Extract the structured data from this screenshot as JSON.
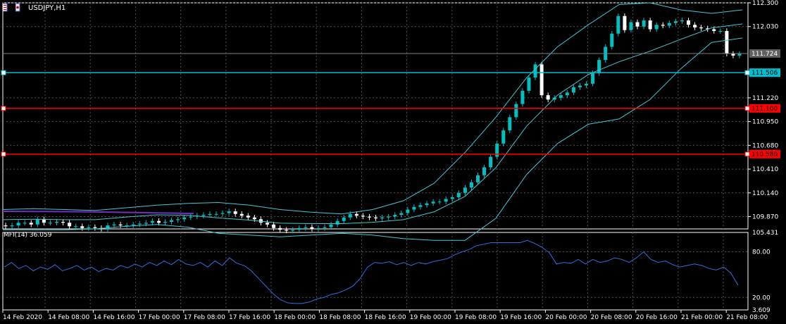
{
  "window": {
    "symbol_title": "USDJPY,H1"
  },
  "indicator": {
    "label": "MFI(14) 36.059",
    "name": "MFI(14)",
    "value": 36.059
  },
  "colors": {
    "background": "#000000",
    "grid": "#505050",
    "bull": "#00c0c0",
    "bear": "#ffffff",
    "bands": "#40c8d8",
    "mfi": "#2e6fe0",
    "ma": "#7030c0",
    "hline_cyan": "#00c0d0",
    "hline_red": "#ff0000",
    "ask_line": "#808080"
  },
  "price_axis": {
    "ticks": [
      "112.300",
      "112.030",
      "111.220",
      "110.950",
      "110.680",
      "110.410",
      "110.140",
      "109.870"
    ],
    "min": 109.73,
    "max": 112.3
  },
  "mfi_axis": {
    "ticks": [
      "105.431",
      "80.00",
      "20.00",
      "3.609"
    ],
    "min": 3.609,
    "max": 105.431
  },
  "price_labels": [
    {
      "text": "111.724",
      "price": 111.724,
      "kind": "current"
    },
    {
      "text": "111.506",
      "price": 111.506,
      "kind": "cyan"
    },
    {
      "text": "111.100",
      "price": 111.1,
      "kind": "red"
    },
    {
      "text": "110.580",
      "price": 110.58,
      "kind": "red"
    }
  ],
  "time_axis": {
    "labels": [
      "14 Feb 2020",
      "14 Feb 08:00",
      "14 Feb 16:00",
      "17 Feb 00:00",
      "17 Feb 08:00",
      "17 Feb 16:00",
      "18 Feb 00:00",
      "18 Feb 08:00",
      "18 Feb 16:00",
      "19 Feb 00:00",
      "19 Feb 08:00",
      "19 Feb 16:00",
      "20 Feb 00:00",
      "20 Feb 08:00",
      "20 Feb 16:00",
      "21 Feb 00:00",
      "21 Feb 08:00"
    ]
  },
  "chart_data": {
    "type": "candlestick",
    "symbol": "USDJPY",
    "timeframe": "H1",
    "closes": [
      109.76,
      109.77,
      109.8,
      109.8,
      109.78,
      109.84,
      109.8,
      109.8,
      109.81,
      109.8,
      109.76,
      109.76,
      109.74,
      109.75,
      109.74,
      109.73,
      109.77,
      109.78,
      109.77,
      109.77,
      109.78,
      109.79,
      109.8,
      109.82,
      109.8,
      109.81,
      109.83,
      109.84,
      109.86,
      109.87,
      109.88,
      109.89,
      109.9,
      109.9,
      109.91,
      109.93,
      109.9,
      109.88,
      109.86,
      109.84,
      109.8,
      109.78,
      109.74,
      109.72,
      109.71,
      109.72,
      109.74,
      109.75,
      109.73,
      109.74,
      109.75,
      109.78,
      109.82,
      109.86,
      109.9,
      109.88,
      109.87,
      109.86,
      109.85,
      109.86,
      109.87,
      109.89,
      109.91,
      109.95,
      109.98,
      110.0,
      110.02,
      110.04,
      110.04,
      110.07,
      110.09,
      110.14,
      110.2,
      110.26,
      110.34,
      110.43,
      110.55,
      110.7,
      110.85,
      111.0,
      111.15,
      111.3,
      111.45,
      111.6,
      111.25,
      111.2,
      111.22,
      111.25,
      111.28,
      111.34,
      111.36,
      111.38,
      111.5,
      111.65,
      111.8,
      111.95,
      112.15,
      111.99,
      112.08,
      112.03,
      112.1,
      112.0,
      112.05,
      112.04,
      112.07,
      112.09,
      112.1,
      112.05,
      112.02,
      112.01,
      112.0,
      111.98,
      111.98,
      111.72,
      111.7,
      111.72
    ],
    "upper_band_closes_approx": [
      109.95,
      109.96,
      109.95,
      109.94,
      109.97,
      110.0,
      110.02,
      110.03,
      110.0,
      109.95,
      109.92,
      109.9,
      109.95,
      110.05,
      110.25,
      110.6,
      111.0,
      111.45,
      111.8,
      112.05,
      112.28,
      112.3,
      112.22,
      112.18,
      112.22
    ],
    "lower_band_closes_approx": [
      109.72,
      109.72,
      109.72,
      109.73,
      109.76,
      109.78,
      109.75,
      109.68,
      109.66,
      109.64,
      109.66,
      109.68,
      109.66,
      109.62,
      109.6,
      109.6,
      109.85,
      110.35,
      110.7,
      110.92,
      110.98,
      111.2,
      111.55,
      111.85,
      111.9
    ],
    "mfi_values": [
      60,
      66,
      58,
      62,
      55,
      60,
      57,
      63,
      55,
      58,
      62,
      56,
      60,
      54,
      58,
      56,
      62,
      59,
      64,
      60,
      66,
      62,
      68,
      63,
      70,
      64,
      62,
      66,
      60,
      68,
      62,
      72,
      65,
      62,
      55,
      45,
      35,
      25,
      17,
      13,
      12,
      12,
      14,
      18,
      20,
      24,
      26,
      30,
      35,
      45,
      60,
      66,
      65,
      67,
      63,
      66,
      62,
      66,
      64,
      67,
      69,
      71,
      76,
      80,
      83,
      88,
      90,
      92,
      92,
      92,
      92,
      92,
      95,
      91,
      86,
      79,
      64,
      66,
      65,
      70,
      64,
      70,
      66,
      68,
      72,
      70,
      66,
      72,
      80,
      70,
      66,
      68,
      63,
      60,
      62,
      64,
      62,
      58,
      56,
      60,
      52,
      36
    ]
  }
}
